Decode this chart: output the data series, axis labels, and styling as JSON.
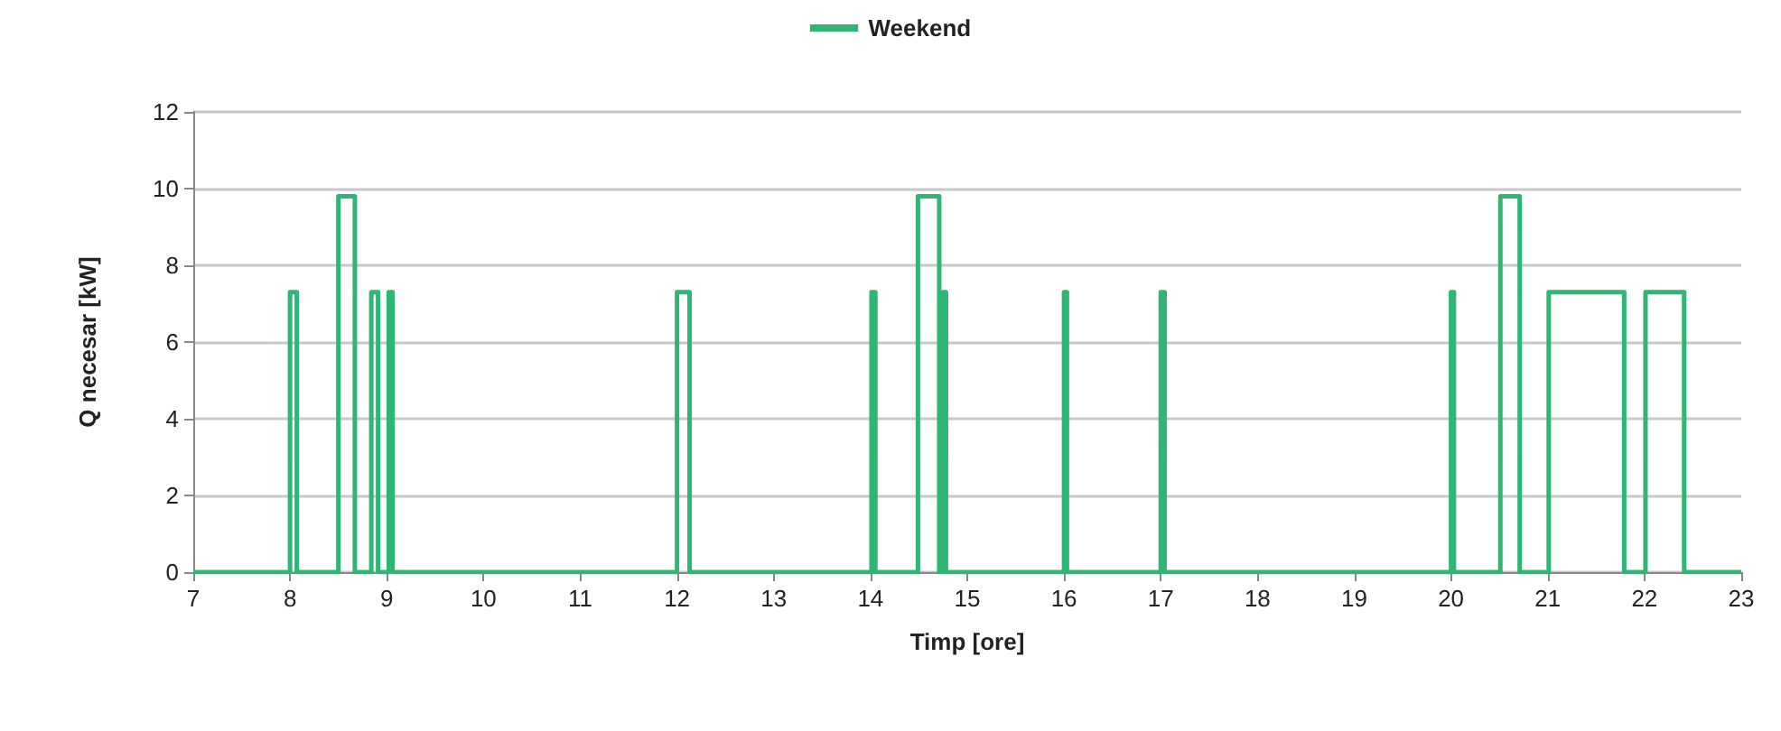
{
  "chart_data": {
    "type": "step",
    "xlabel": "Timp [ore]",
    "ylabel": "Q necesar [kW]",
    "legend": "top",
    "grid": "y",
    "marker": "none",
    "xlim": [
      7,
      23
    ],
    "xticks": [
      7,
      8,
      9,
      10,
      11,
      12,
      13,
      14,
      15,
      16,
      17,
      18,
      19,
      20,
      21,
      22,
      23
    ],
    "ylim": [
      0,
      12
    ],
    "yticks": [
      0,
      2,
      4,
      6,
      8,
      10,
      12
    ],
    "series": [
      {
        "name": "Weekend",
        "color": "#2fb574",
        "x": [
          7,
          8.0,
          8.07,
          8.5,
          8.67,
          8.84,
          8.91,
          9.02,
          9.06,
          12.0,
          12.13,
          14.01,
          14.05,
          14.49,
          14.71,
          14.75,
          14.78,
          16.0,
          16.03,
          17.0,
          17.04,
          20.0,
          20.03,
          20.51,
          20.71,
          21.01,
          21.79,
          22.01,
          22.41,
          23
        ],
        "values": [
          0,
          7.3,
          0,
          9.8,
          0,
          7.3,
          0,
          7.3,
          0,
          7.3,
          0,
          7.3,
          0,
          9.8,
          0,
          7.3,
          0,
          7.3,
          0,
          7.3,
          0,
          7.3,
          0,
          9.8,
          0,
          7.3,
          0,
          7.3,
          0,
          0
        ]
      }
    ]
  }
}
